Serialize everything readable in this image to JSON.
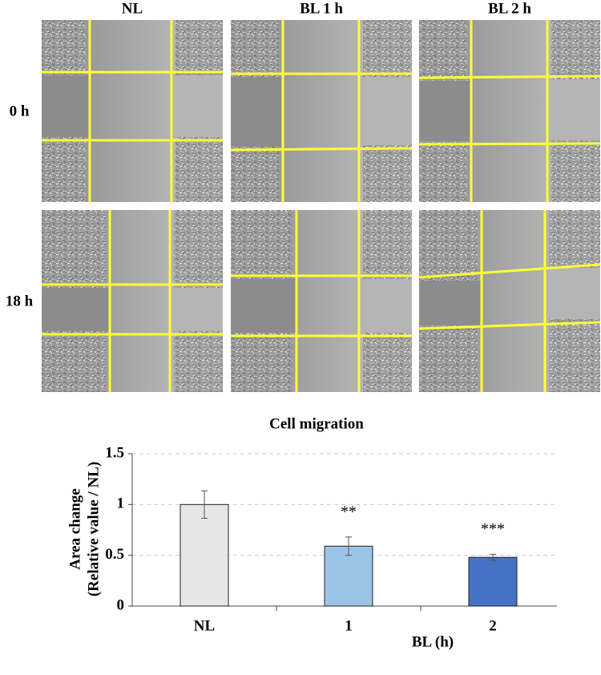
{
  "image_panel": {
    "columns": [
      "NL",
      "BL 1 h",
      "BL 2 h"
    ],
    "rows": [
      "0 h",
      "18 h"
    ]
  },
  "chart_data": {
    "type": "bar",
    "title": "Cell migration",
    "y_label": [
      "Area change",
      "(Relative value / NL)"
    ],
    "x_label": "BL (h)",
    "categories": [
      "NL",
      "1",
      "2"
    ],
    "values": [
      1.0,
      0.59,
      0.48
    ],
    "errors": [
      0.135,
      0.09,
      0.03
    ],
    "colors": [
      "#e6e6e6",
      "#9dc3e6",
      "#4472c4"
    ],
    "significance": [
      null,
      "**",
      "***"
    ],
    "ylim": [
      0,
      1.5
    ],
    "yticks": [
      0,
      0.5,
      1,
      1.5
    ],
    "grid": true
  }
}
